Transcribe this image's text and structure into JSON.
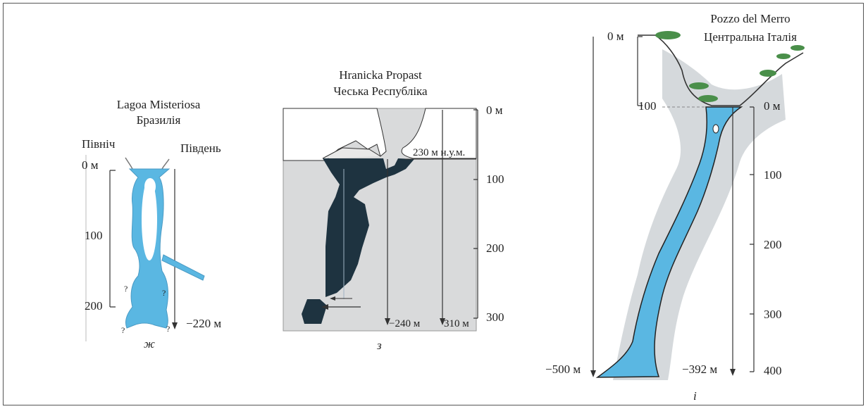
{
  "panels": {
    "zh": {
      "title": "Lagoa Misteriosa",
      "subtitle": "Бразилія",
      "north": "Північ",
      "south": "Південь",
      "depth_labels": [
        "0 м",
        "100",
        "200"
      ],
      "bottom_depth": "−220 м",
      "unknown_mark": "?",
      "letter": "ж",
      "colors": {
        "water": "#5ab7e2",
        "outline": "#333333"
      }
    },
    "z": {
      "title": "Hranicka Propast",
      "subtitle": "Чеська Республіка",
      "scale_labels": [
        "0 м",
        "100",
        "200",
        "300"
      ],
      "altitude_label": "230 м н.у.м.",
      "depth_a": "−240 м",
      "depth_b": "310 м",
      "letter": "з",
      "colors": {
        "background": "#d9dadb",
        "cave": "#1e3340",
        "surface": "#ffffff"
      }
    },
    "i": {
      "title": "Pozzo del Merro",
      "subtitle": "Центральна Італія",
      "top_scale": [
        "0 м",
        "100"
      ],
      "right_scale": [
        "0 м",
        "100",
        "200",
        "300",
        "400"
      ],
      "depth_a": "−500 м",
      "depth_b": "−392 м",
      "letter": "i",
      "colors": {
        "halo": "#d5d9dc",
        "water": "#5ab7e2",
        "tree": "#4a8f4a"
      }
    }
  }
}
